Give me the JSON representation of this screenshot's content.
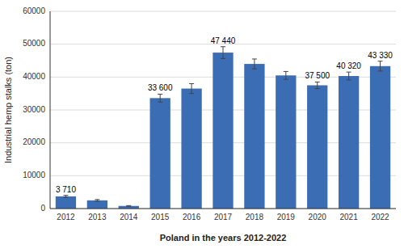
{
  "chart_data": {
    "type": "bar",
    "categories": [
      "2012",
      "2013",
      "2014",
      "2015",
      "2016",
      "2017",
      "2018",
      "2019",
      "2020",
      "2021",
      "2022"
    ],
    "values": [
      3710,
      2500,
      800,
      33600,
      36500,
      47440,
      44000,
      40500,
      37500,
      40320,
      43330
    ],
    "errors": [
      300,
      250,
      100,
      1200,
      1500,
      1800,
      1500,
      1200,
      1000,
      1200,
      1500
    ],
    "value_labels": [
      "3 710",
      null,
      null,
      "33 600",
      null,
      "47 440",
      null,
      null,
      "37 500",
      "40 320",
      "43 330"
    ],
    "data_labels": true,
    "color": "#3B6DB5",
    "xlabel": "Poland in the years 2012-2022",
    "ylabel": "Industrial hemp stalks (ton)",
    "ylim": [
      0,
      60000
    ],
    "yticks": [
      0,
      10000,
      20000,
      30000,
      40000,
      50000,
      60000
    ],
    "grid": true
  }
}
